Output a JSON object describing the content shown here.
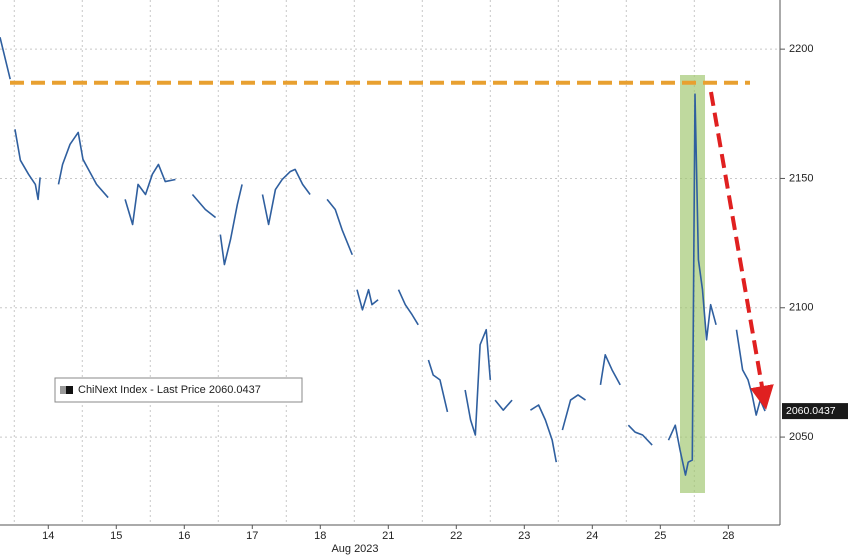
{
  "chart_data": {
    "type": "line",
    "xlabel": "Aug 2023",
    "xlim": [
      -0.21,
      11.26
    ],
    "xticks": [
      {
        "value": 0.5,
        "label": "14"
      },
      {
        "value": 1.5,
        "label": "15"
      },
      {
        "value": 2.5,
        "label": "16"
      },
      {
        "value": 3.5,
        "label": "17"
      },
      {
        "value": 4.5,
        "label": "18"
      },
      {
        "value": 5.5,
        "label": "21"
      },
      {
        "value": 6.5,
        "label": "22"
      },
      {
        "value": 7.5,
        "label": "23"
      },
      {
        "value": 8.5,
        "label": "24"
      },
      {
        "value": 9.5,
        "label": "25"
      },
      {
        "value": 10.5,
        "label": "28"
      }
    ],
    "ylim": [
      2016,
      2219
    ],
    "yticks": [
      2050,
      2100,
      2150,
      2200
    ],
    "grid": true,
    "last_price": 2060.0437,
    "reference_line": {
      "value": 2187,
      "color": "#e8a030"
    },
    "series": [
      {
        "name": "ChiNext Index - Last Price",
        "color": "#2f5f9f",
        "x": [
          -0.21,
          -0.06,
          null,
          0.01,
          0.09,
          0.21,
          0.31,
          0.35,
          0.38,
          null,
          0.65,
          0.71,
          0.82,
          0.94,
          1.01,
          1.09,
          1.21,
          1.38,
          null,
          1.63,
          1.74,
          1.82,
          1.93,
          2.03,
          2.12,
          2.22,
          2.37,
          null,
          2.62,
          2.81,
          2.96,
          null,
          3.03,
          3.09,
          3.18,
          3.28,
          3.35,
          null,
          3.65,
          3.74,
          3.84,
          3.94,
          4.06,
          4.13,
          4.24,
          4.35,
          null,
          4.6,
          4.72,
          4.82,
          4.97,
          null,
          5.04,
          5.12,
          5.21,
          5.26,
          5.35,
          null,
          5.65,
          5.75,
          5.85,
          5.94,
          null,
          6.09,
          6.16,
          6.26,
          6.37,
          null,
          6.63,
          6.71,
          6.78,
          6.85,
          6.94,
          7,
          null,
          7.07,
          7.19,
          7.32,
          null,
          7.59,
          7.71,
          7.81,
          7.91,
          7.97,
          null,
          8.06,
          8.18,
          8.29,
          8.4,
          null,
          8.62,
          8.69,
          8.79,
          8.91,
          null,
          9.03,
          9.13,
          9.24,
          9.38,
          null,
          9.62,
          9.72,
          9.79,
          9.87,
          9.91,
          9.97,
          10.01,
          10.06,
          10.12,
          10.18,
          10.24,
          10.32,
          null,
          10.62,
          10.71,
          10.79,
          10.85,
          10.91,
          10.97,
          11.04
        ],
        "values": [
          2204.6,
          2188.4,
          null,
          2169,
          2157,
          2151.6,
          2147.7,
          2141.9,
          2150.4,
          null,
          2147.7,
          2155.4,
          2163.2,
          2167.8,
          2157.4,
          2153.5,
          2147.7,
          2142.6,
          null,
          2141.9,
          2132.2,
          2147.7,
          2143.8,
          2151.6,
          2155.4,
          2148.8,
          2149.6,
          null,
          2143.8,
          2138,
          2134.9,
          null,
          2128.3,
          2116.7,
          2126.4,
          2139.9,
          2147.7,
          null,
          2143.8,
          2132.2,
          2145.7,
          2149.6,
          2152.7,
          2153.5,
          2147.7,
          2143.8,
          null,
          2141.9,
          2138,
          2130.2,
          2120.5,
          null,
          2107,
          2099.2,
          2107,
          2101.2,
          2103.1,
          null,
          2107,
          2101.2,
          2097.3,
          2093.4,
          null,
          2079.8,
          2074,
          2072.1,
          2059.7,
          null,
          2068.2,
          2056.6,
          2050.8,
          2085.7,
          2091.5,
          2072.1,
          null,
          2064.3,
          2060.4,
          2064.3,
          null,
          2060.4,
          2062.4,
          2056.6,
          2048.8,
          2040.3,
          null,
          2052.7,
          2064.3,
          2066.3,
          2064.3,
          null,
          2070.2,
          2081.8,
          2076,
          2070.2,
          null,
          2054.6,
          2051.9,
          2050.8,
          2046.9,
          null,
          2048.8,
          2054.6,
          2045,
          2035.3,
          2040.3,
          2041.1,
          2182.6,
          2118.6,
          2107,
          2087.6,
          2101.2,
          2093.4,
          null,
          2091.5,
          2076,
          2072.1,
          2066.3,
          2058.5,
          2064.3,
          2060.04
        ]
      }
    ]
  }
}
